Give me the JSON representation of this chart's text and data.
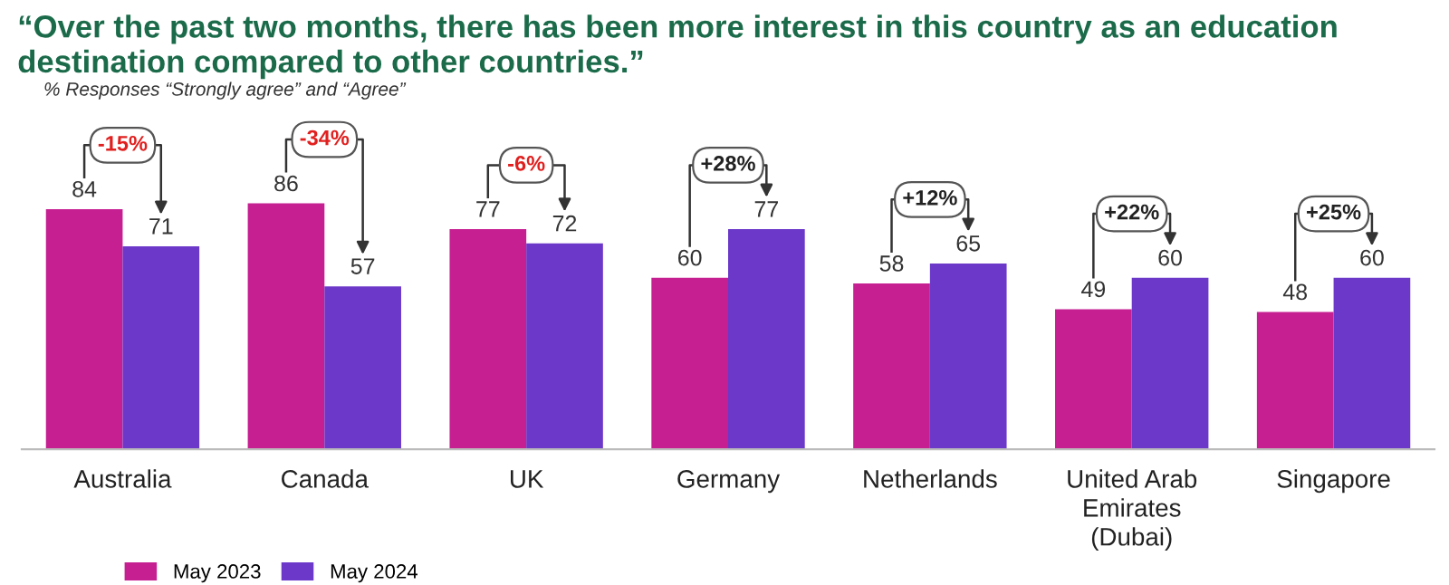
{
  "chart_data": {
    "type": "bar",
    "title": "“Over the past two months, there has been more interest in this country as an education destination compared to other countries.”",
    "subtitle": "% Responses “Strongly agree” and “Agree”",
    "categories": [
      "Australia",
      "Canada",
      "UK",
      "Germany",
      "Netherlands",
      "United Arab\nEmirates\n(Dubai)",
      "Singapore"
    ],
    "series": [
      {
        "name": "May 2023",
        "color": "#c61f92",
        "values": [
          84,
          86,
          77,
          60,
          58,
          49,
          48
        ]
      },
      {
        "name": "May 2024",
        "color": "#6b38c9",
        "values": [
          71,
          57,
          72,
          77,
          65,
          60,
          60
        ]
      }
    ],
    "annotations": [
      "-15%",
      "-34%",
      "-6%",
      "+28%",
      "+12%",
      "+22%",
      "+25%"
    ],
    "data_labels": true,
    "legend": "bottom left",
    "grid": false
  }
}
